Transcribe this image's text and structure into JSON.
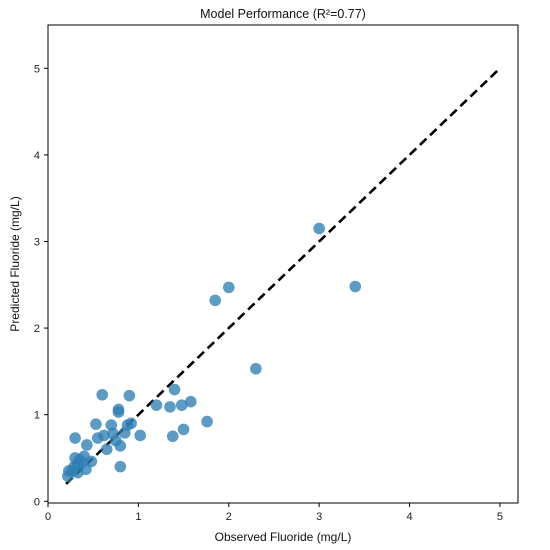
{
  "chart_data": {
    "type": "scatter",
    "title": "Model Performance (R²=0.77)",
    "xlabel": "Observed Fluoride (mg/L)",
    "ylabel": "Predicted Fluoride (mg/L)",
    "xlim": [
      0,
      5.2
    ],
    "ylim": [
      -0.02,
      5.5
    ],
    "xticks": [
      0,
      1,
      2,
      3,
      4,
      5
    ],
    "yticks": [
      0,
      1,
      2,
      3,
      4,
      5
    ],
    "grid": false,
    "legend": false,
    "point_color": "#2e7fb4",
    "reference_line": {
      "x": [
        0.2,
        5.0
      ],
      "y": [
        0.2,
        5.0
      ],
      "style": "dashed",
      "color": "#000000"
    },
    "points": [
      [
        0.22,
        0.29
      ],
      [
        0.23,
        0.35
      ],
      [
        0.27,
        0.35
      ],
      [
        0.29,
        0.4
      ],
      [
        0.3,
        0.5
      ],
      [
        0.3,
        0.73
      ],
      [
        0.33,
        0.33
      ],
      [
        0.33,
        0.43
      ],
      [
        0.35,
        0.48
      ],
      [
        0.38,
        0.45
      ],
      [
        0.4,
        0.52
      ],
      [
        0.42,
        0.37
      ],
      [
        0.43,
        0.65
      ],
      [
        0.48,
        0.46
      ],
      [
        0.53,
        0.89
      ],
      [
        0.55,
        0.73
      ],
      [
        0.6,
        1.23
      ],
      [
        0.62,
        0.76
      ],
      [
        0.65,
        0.6
      ],
      [
        0.7,
        0.88
      ],
      [
        0.72,
        0.78
      ],
      [
        0.75,
        0.7
      ],
      [
        0.78,
        1.06
      ],
      [
        0.78,
        1.03
      ],
      [
        0.8,
        0.4
      ],
      [
        0.8,
        0.64
      ],
      [
        0.85,
        0.79
      ],
      [
        0.88,
        0.88
      ],
      [
        0.9,
        1.22
      ],
      [
        0.92,
        0.9
      ],
      [
        1.02,
        0.76
      ],
      [
        1.2,
        1.11
      ],
      [
        1.35,
        1.09
      ],
      [
        1.38,
        0.75
      ],
      [
        1.4,
        1.29
      ],
      [
        1.48,
        1.11
      ],
      [
        1.5,
        0.83
      ],
      [
        1.58,
        1.15
      ],
      [
        1.76,
        0.92
      ],
      [
        1.85,
        2.32
      ],
      [
        2.0,
        2.47
      ],
      [
        2.3,
        1.53
      ],
      [
        3.0,
        3.15
      ],
      [
        3.4,
        2.48
      ]
    ]
  }
}
